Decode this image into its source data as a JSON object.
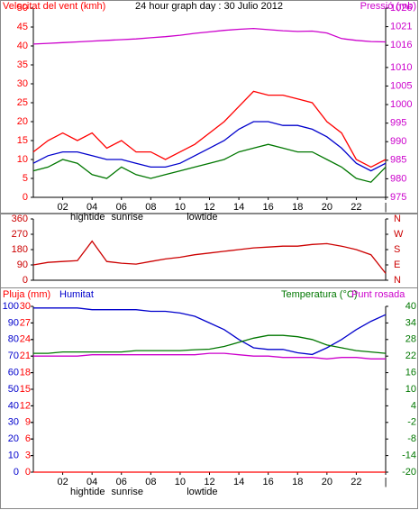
{
  "chart_data": [
    {
      "type": "line",
      "title": "24 hour graph day : 30 Julio 2012",
      "ylabel": "Velocitat del vent (kmh)",
      "ycolor": "#ff0000",
      "y2label": "Pressió (mb)",
      "y2color": "#cc00cc",
      "x": [
        0,
        1,
        2,
        3,
        4,
        5,
        6,
        7,
        8,
        9,
        10,
        11,
        12,
        13,
        14,
        15,
        16,
        17,
        18,
        19,
        20,
        21,
        22,
        23,
        24
      ],
      "xlim": [
        0,
        24
      ],
      "xticks": [
        {
          "value": 2,
          "label": "02"
        },
        {
          "value": 4,
          "label": "04"
        },
        {
          "value": 6,
          "label": "06"
        },
        {
          "value": 8,
          "label": "08"
        },
        {
          "value": 10,
          "label": "10"
        },
        {
          "value": 12,
          "label": "12"
        },
        {
          "value": 14,
          "label": "14"
        },
        {
          "value": 16,
          "label": "16"
        },
        {
          "value": 18,
          "label": "18"
        },
        {
          "value": 20,
          "label": "20"
        },
        {
          "value": 22,
          "label": "22"
        },
        {
          "value": 24,
          "label": "|"
        }
      ],
      "annotations": [
        {
          "text": "hightide",
          "x": 3.7
        },
        {
          "text": "sunrise",
          "x": 6.4
        },
        {
          "text": "lowtide",
          "x": 11.5
        }
      ],
      "ylim": [
        0,
        50
      ],
      "yticks": [
        0,
        5,
        10,
        15,
        20,
        25,
        30,
        35,
        40,
        45,
        50
      ],
      "y2lim": [
        975,
        1026
      ],
      "y2ticks": [
        975,
        980,
        985,
        990,
        995,
        1000,
        1005,
        1010,
        1016,
        1021,
        1026
      ],
      "series": [
        {
          "color": "#ff0000",
          "values": [
            12,
            15,
            17,
            15,
            17,
            13,
            15,
            12,
            12,
            10,
            12,
            14,
            17,
            20,
            24,
            28,
            27,
            27,
            26,
            25,
            20,
            17,
            10,
            8,
            10
          ]
        },
        {
          "color": "#0000cc",
          "values": [
            9,
            11,
            12,
            12,
            11,
            10,
            10,
            9,
            8,
            8,
            9,
            11,
            13,
            15,
            18,
            20,
            20,
            19,
            19,
            18,
            16,
            13,
            9,
            7,
            9
          ]
        },
        {
          "color": "#007700",
          "values": [
            7,
            8,
            10,
            9,
            6,
            5,
            8,
            6,
            5,
            6,
            7,
            8,
            9,
            10,
            12,
            13,
            14,
            13,
            12,
            12,
            10,
            8,
            5,
            4,
            8
          ]
        },
        {
          "color": "#cc00cc",
          "axis": "y2",
          "values": [
            1016.3,
            1016.5,
            1016.7,
            1016.9,
            1017.1,
            1017.3,
            1017.5,
            1017.7,
            1018,
            1018.3,
            1018.7,
            1019.2,
            1019.6,
            1020,
            1020.3,
            1020.5,
            1020.2,
            1019.9,
            1019.7,
            1019.8,
            1019.3,
            1017.8,
            1017.3,
            1017,
            1016.9
          ]
        }
      ]
    },
    {
      "type": "line",
      "ycolor": "#cc0000",
      "y2color": "#cc0000",
      "x": [
        0,
        1,
        2,
        3,
        4,
        5,
        6,
        7,
        8,
        9,
        10,
        11,
        12,
        13,
        14,
        15,
        16,
        17,
        18,
        19,
        20,
        21,
        22,
        23,
        24
      ],
      "xlim": [
        0,
        24
      ],
      "ylim": [
        0,
        360
      ],
      "yticks": [
        0,
        90,
        180,
        270,
        360
      ],
      "y2lim": [
        0,
        360
      ],
      "y2ticks": [
        {
          "value": 0,
          "label": "N"
        },
        {
          "value": 90,
          "label": "E"
        },
        {
          "value": 180,
          "label": "S"
        },
        {
          "value": 270,
          "label": "W"
        },
        {
          "value": 360,
          "label": "N"
        }
      ],
      "series": [
        {
          "color": "#cc0000",
          "values": [
            90,
            105,
            110,
            115,
            230,
            110,
            100,
            95,
            110,
            125,
            135,
            150,
            160,
            170,
            180,
            190,
            195,
            200,
            200,
            210,
            215,
            200,
            180,
            150,
            40
          ]
        }
      ]
    },
    {
      "type": "line",
      "ycolor": "#0000cc",
      "y3color": "#ff0000",
      "y2color": "#007700",
      "x": [
        0,
        1,
        2,
        3,
        4,
        5,
        6,
        7,
        8,
        9,
        10,
        11,
        12,
        13,
        14,
        15,
        16,
        17,
        18,
        19,
        20,
        21,
        22,
        23,
        24
      ],
      "xlim": [
        0,
        24
      ],
      "xticks": [
        {
          "value": 2,
          "label": "02"
        },
        {
          "value": 4,
          "label": "04"
        },
        {
          "value": 6,
          "label": "06"
        },
        {
          "value": 8,
          "label": "08"
        },
        {
          "value": 10,
          "label": "10"
        },
        {
          "value": 12,
          "label": "12"
        },
        {
          "value": 14,
          "label": "14"
        },
        {
          "value": 16,
          "label": "16"
        },
        {
          "value": 18,
          "label": "18"
        },
        {
          "value": 20,
          "label": "20"
        },
        {
          "value": 22,
          "label": "22"
        },
        {
          "value": 24,
          "label": "|"
        }
      ],
      "annotations": [
        {
          "text": "hightide",
          "x": 3.7
        },
        {
          "text": "sunrise",
          "x": 6.4
        },
        {
          "text": "lowtide",
          "x": 11.5
        }
      ],
      "ylim": [
        0,
        100
      ],
      "yticks": [
        0,
        10,
        20,
        30,
        40,
        50,
        60,
        70,
        80,
        90,
        100
      ],
      "y3lim": [
        0,
        30
      ],
      "y3ticks": [
        0,
        3,
        6,
        9,
        12,
        15,
        18,
        21,
        24,
        27,
        30
      ],
      "y2lim": [
        -20,
        40
      ],
      "y2ticks": [
        -20,
        -14,
        -8,
        -2,
        4,
        10,
        16,
        22,
        28,
        34,
        40
      ],
      "series": [
        {
          "name": "Pluja (mm)",
          "color": "#ff0000",
          "axis": "y3",
          "values": [
            0,
            0,
            0,
            0,
            0,
            0,
            0,
            0,
            0,
            0,
            0,
            0,
            0,
            0,
            0,
            0,
            0,
            0,
            0,
            0,
            0,
            0,
            0,
            0,
            0
          ]
        },
        {
          "name": "Humitat",
          "color": "#0000cc",
          "values": [
            99,
            99,
            99,
            99,
            98,
            98,
            98,
            98,
            97,
            97,
            96,
            94,
            90,
            86,
            80,
            75,
            74,
            74,
            72,
            71,
            75,
            80,
            86,
            91,
            95
          ]
        },
        {
          "name": "Temperatura (°C)",
          "color": "#007700",
          "axis": "y2",
          "values": [
            23,
            23,
            23.5,
            23.5,
            23.5,
            23.5,
            23.5,
            24,
            24,
            24,
            24,
            24.3,
            24.5,
            25.5,
            27,
            28.5,
            29.5,
            29.5,
            29,
            28,
            26,
            25,
            24,
            23.5,
            23
          ]
        },
        {
          "name": "Punt rosada",
          "color": "#cc00cc",
          "axis": "y2",
          "values": [
            22,
            22,
            22,
            22,
            22.5,
            22.5,
            22.5,
            22.5,
            22.5,
            22.5,
            22.5,
            22.5,
            23,
            23,
            22.5,
            22,
            22,
            21.5,
            21.5,
            21.5,
            21,
            21.5,
            21.5,
            21,
            21
          ]
        }
      ]
    }
  ]
}
